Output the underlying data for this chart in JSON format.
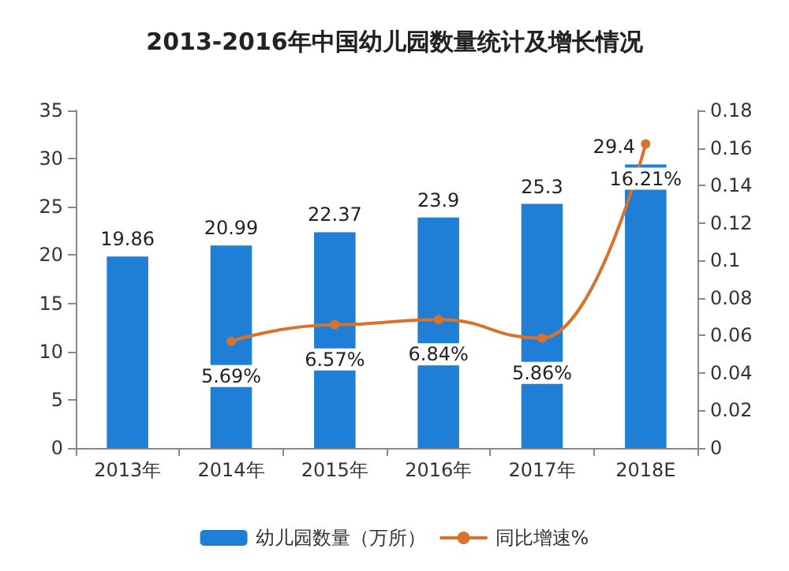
{
  "chart_data": {
    "type": "bar",
    "title": "2013-2016年中国幼儿园数量统计及增长情况",
    "categories": [
      "2013年",
      "2014年",
      "2015年",
      "2016年",
      "2017年",
      "2018E"
    ],
    "series": [
      {
        "name": "幼儿园数量（万所）",
        "color": "#1f7fd6",
        "values": [
          19.86,
          20.99,
          22.37,
          23.9,
          25.3,
          29.4
        ],
        "data_labels": true
      },
      {
        "name": "同比增速%",
        "type": "line",
        "axis": "y2",
        "color": "#d9722a",
        "marker": "circle",
        "values": [
          null,
          0.0569,
          0.0657,
          0.0684,
          0.0586,
          0.1621
        ],
        "value_labels": [
          null,
          "5.69%",
          "6.57%",
          "6.84%",
          "5.86%",
          "16.21%"
        ]
      }
    ],
    "ylim": [
      0,
      35
    ],
    "yticks": [
      0,
      5,
      10,
      15,
      20,
      25,
      30,
      35
    ],
    "y2lim": [
      0,
      0.18
    ],
    "y2ticks": [
      0,
      0.02,
      0.04,
      0.06,
      0.08,
      0.1,
      0.12,
      0.14,
      0.16,
      0.18
    ],
    "grid": false,
    "legend": "bottom"
  }
}
